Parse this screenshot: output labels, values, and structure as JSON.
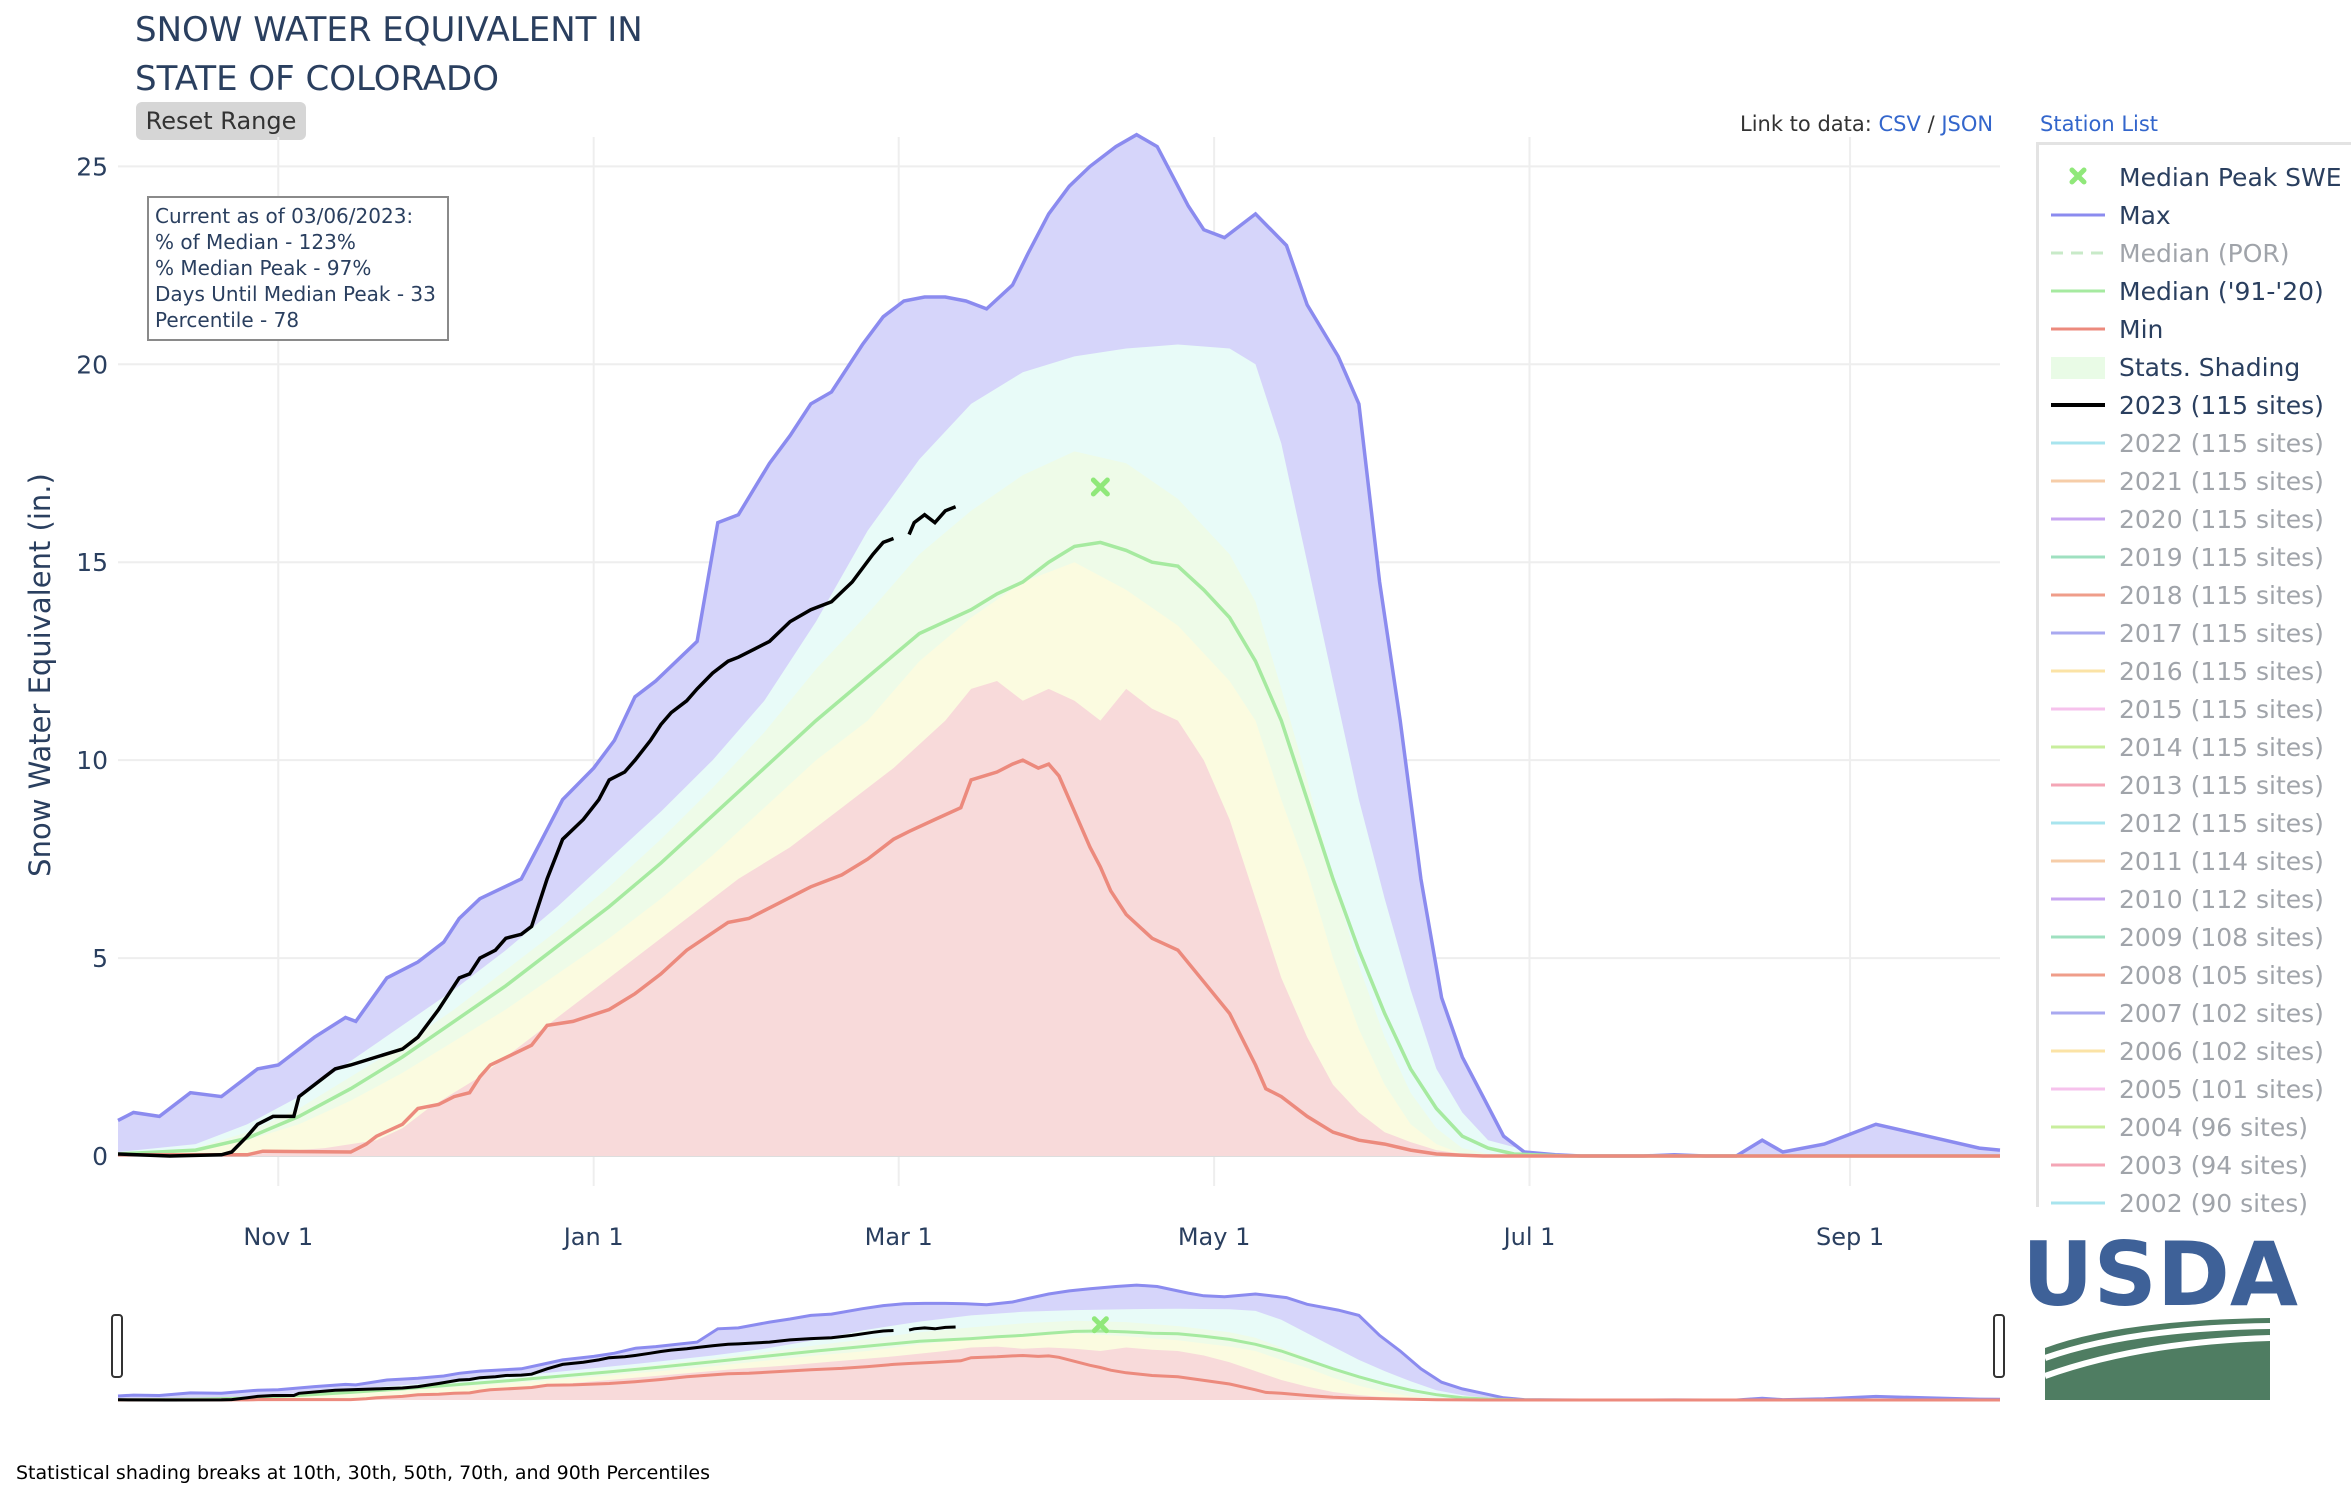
{
  "header": {
    "title_line1": "SNOW WATER EQUIVALENT IN",
    "title_line2": "STATE OF COLORADO",
    "reset_label": "Reset Range",
    "link_prefix": "Link to data:",
    "link_csv": "CSV",
    "link_sep": "/",
    "link_json": "JSON",
    "station_list": "Station List"
  },
  "info_box": {
    "line1": "Current as of 03/06/2023:",
    "line2": "% of Median - 123%",
    "line3": "% Median Peak - 97%",
    "line4": "Days Until Median Peak - 33",
    "line5": "Percentile - 78"
  },
  "footnote": "Statistical shading breaks at 10th, 30th, 50th, 70th, and 90th Percentiles",
  "logo": {
    "text": "USDA",
    "color_blue": "#3e6198",
    "color_green": "#4f7d62"
  },
  "colors": {
    "max": "#8b8bef",
    "max_fill": "#d6d5fa",
    "p90_fill": "#e8fbf8",
    "p70_fill": "#eefbe8",
    "p50_fill": "#fbfbe0",
    "min_fill": "#f8dada",
    "min": "#ec8a7d",
    "median": "#a6eaa0",
    "current": "#000000",
    "peak_marker": "#90e87a",
    "grid": "#eeeeee",
    "axis_text": "#2a3f5f"
  },
  "chart_data": {
    "type": "area",
    "title": "SNOW WATER EQUIVALENT IN STATE OF COLORADO",
    "ylabel": "Snow Water Equivalent (in.)",
    "xlabel": "",
    "x_range": [
      "10/01",
      "09/30"
    ],
    "ylim": [
      0,
      26.5
    ],
    "x_ticks": [
      "Nov 1",
      "Jan 1",
      "Mar 1",
      "May 1",
      "Jul 1",
      "Sep 1"
    ],
    "y_ticks": [
      0,
      5,
      10,
      15,
      20,
      25
    ],
    "grid": true,
    "legend_position": "right",
    "x_unit": "days since Oct 1",
    "series": [
      {
        "name": "Max",
        "x": [
          0,
          3,
          8,
          14,
          20,
          27,
          31,
          38,
          44,
          46,
          52,
          58,
          63,
          66,
          70,
          78,
          82,
          86,
          92,
          96,
          100,
          104,
          112,
          116,
          120,
          126,
          130,
          134,
          138,
          144,
          148,
          152,
          156,
          160,
          164,
          168,
          173,
          176,
          180,
          184,
          188,
          193,
          197,
          201,
          207,
          210,
          214,
          220,
          226,
          230,
          236,
          240,
          244,
          248,
          252,
          256,
          260,
          264,
          268,
          272,
          278,
          283,
          290,
          295,
          301,
          307,
          313,
          318,
          322,
          330,
          340,
          350,
          360,
          364
        ],
        "values": [
          0.9,
          1.1,
          1.0,
          1.6,
          1.5,
          2.2,
          2.3,
          3.0,
          3.5,
          3.4,
          4.5,
          4.9,
          5.4,
          6.0,
          6.5,
          7.0,
          8.0,
          9.0,
          9.8,
          10.5,
          11.6,
          12.0,
          13.0,
          16.0,
          16.2,
          17.5,
          18.2,
          19.0,
          19.3,
          20.5,
          21.2,
          21.6,
          21.7,
          21.7,
          21.6,
          21.4,
          22.0,
          22.8,
          23.8,
          24.5,
          25.0,
          25.5,
          25.8,
          25.5,
          24.0,
          23.4,
          23.2,
          23.8,
          23.0,
          21.5,
          20.2,
          19.0,
          14.5,
          11.0,
          7.0,
          4.0,
          2.5,
          1.5,
          0.5,
          0.1,
          0.03,
          0.0,
          0.0,
          0.0,
          0.03,
          0.0,
          0.0,
          0.4,
          0.1,
          0.3,
          0.8,
          0.5,
          0.2,
          0.15
        ]
      },
      {
        "name": "Stats. Shading",
        "x": [
          0,
          15,
          25,
          35,
          45,
          55,
          65,
          75,
          85,
          95,
          105,
          115,
          125,
          135,
          145,
          155,
          165,
          175,
          185,
          195,
          205,
          215,
          220,
          225,
          230,
          235,
          240,
          245,
          250,
          255,
          260,
          265,
          275,
          285,
          295,
          364
        ],
        "values": [
          0.1,
          0.3,
          0.8,
          1.5,
          2.4,
          3.3,
          4.2,
          5.2,
          6.3,
          7.5,
          8.7,
          10.0,
          11.5,
          13.5,
          15.8,
          17.6,
          19.0,
          19.8,
          20.2,
          20.4,
          20.5,
          20.4,
          20.0,
          18.0,
          15.0,
          12.0,
          9.0,
          6.5,
          4.2,
          2.2,
          1.1,
          0.4,
          0.05,
          0.0,
          0.0,
          0.0
        ]
      },
      {
        "name": "Stats. Shading",
        "x": [
          0,
          15,
          25,
          35,
          45,
          55,
          65,
          75,
          85,
          95,
          105,
          115,
          125,
          135,
          145,
          155,
          165,
          175,
          185,
          195,
          205,
          215,
          220,
          225,
          230,
          235,
          240,
          245,
          250,
          255,
          260,
          265,
          275,
          285,
          364
        ],
        "values": [
          0.08,
          0.2,
          0.6,
          1.2,
          2.0,
          2.8,
          3.7,
          4.7,
          5.7,
          6.8,
          8.0,
          9.3,
          10.7,
          12.3,
          13.7,
          15.2,
          16.3,
          17.2,
          17.8,
          17.5,
          16.6,
          15.2,
          14.0,
          11.8,
          9.5,
          7.0,
          4.8,
          3.0,
          1.6,
          0.7,
          0.2,
          0.05,
          0.0,
          0.0,
          0.0
        ]
      },
      {
        "name": "Stats. Shading",
        "x": [
          0,
          15,
          25,
          35,
          45,
          55,
          65,
          75,
          85,
          95,
          105,
          115,
          125,
          135,
          145,
          155,
          165,
          175,
          185,
          195,
          205,
          215,
          220,
          225,
          230,
          235,
          240,
          245,
          250,
          255,
          260,
          265,
          275,
          285,
          364
        ],
        "values": [
          0.05,
          0.12,
          0.4,
          0.8,
          1.4,
          2.1,
          2.9,
          3.7,
          4.6,
          5.5,
          6.5,
          7.6,
          8.8,
          10.0,
          11.0,
          12.5,
          13.6,
          14.5,
          15.0,
          14.3,
          13.4,
          12.0,
          11.0,
          9.0,
          7.2,
          5.0,
          3.2,
          1.8,
          0.8,
          0.3,
          0.05,
          0.0,
          0.0,
          0.0,
          0.0
        ]
      },
      {
        "name": "Stats. Shading",
        "x": [
          0,
          20,
          30,
          40,
          50,
          55,
          60,
          70,
          80,
          90,
          100,
          110,
          120,
          130,
          140,
          150,
          160,
          165,
          170,
          175,
          180,
          185,
          190,
          195,
          200,
          205,
          210,
          215,
          220,
          225,
          230,
          235,
          240,
          245,
          250,
          255,
          260,
          264,
          364
        ],
        "values": [
          0.03,
          0.05,
          0.1,
          0.2,
          0.4,
          0.7,
          1.2,
          2.0,
          3.0,
          4.0,
          5.0,
          6.0,
          7.0,
          7.8,
          8.8,
          9.8,
          11.0,
          11.8,
          12.0,
          11.5,
          11.8,
          11.5,
          11.0,
          11.8,
          11.3,
          11.0,
          10.0,
          8.5,
          6.5,
          4.5,
          3.0,
          1.8,
          1.1,
          0.6,
          0.35,
          0.15,
          0.05,
          0.0,
          0.0
        ]
      },
      {
        "name": "Median ('91-'20)",
        "x": [
          0,
          15,
          25,
          35,
          45,
          55,
          65,
          75,
          85,
          95,
          105,
          115,
          125,
          135,
          145,
          155,
          165,
          170,
          175,
          180,
          185,
          190,
          195,
          200,
          205,
          210,
          215,
          220,
          225,
          230,
          235,
          240,
          245,
          250,
          255,
          260,
          265,
          270,
          280,
          290,
          364
        ],
        "values": [
          0.05,
          0.15,
          0.45,
          1.0,
          1.7,
          2.5,
          3.4,
          4.3,
          5.3,
          6.3,
          7.4,
          8.6,
          9.8,
          11.0,
          12.1,
          13.2,
          13.8,
          14.2,
          14.5,
          15.0,
          15.4,
          15.5,
          15.3,
          15.0,
          14.9,
          14.3,
          13.6,
          12.5,
          11.0,
          9.0,
          7.0,
          5.2,
          3.6,
          2.2,
          1.2,
          0.5,
          0.2,
          0.05,
          0.0,
          0.0,
          0.0
        ]
      },
      {
        "name": "Min",
        "x": [
          0,
          25,
          28,
          45,
          48,
          50,
          55,
          58,
          62,
          65,
          68,
          70,
          72,
          80,
          83,
          88,
          95,
          100,
          105,
          110,
          118,
          122,
          128,
          134,
          140,
          145,
          150,
          153,
          158,
          163,
          165,
          170,
          173,
          175,
          178,
          180,
          182,
          185,
          188,
          190,
          192,
          195,
          200,
          205,
          210,
          215,
          220,
          222,
          225,
          230,
          235,
          240,
          245,
          250,
          255,
          260,
          264,
          280,
          364
        ],
        "values": [
          0.03,
          0.03,
          0.12,
          0.1,
          0.3,
          0.5,
          0.8,
          1.2,
          1.3,
          1.5,
          1.6,
          2.0,
          2.3,
          2.8,
          3.3,
          3.4,
          3.7,
          4.1,
          4.6,
          5.2,
          5.9,
          6.0,
          6.4,
          6.8,
          7.1,
          7.5,
          8.0,
          8.2,
          8.5,
          8.8,
          9.5,
          9.7,
          9.9,
          10.0,
          9.8,
          9.9,
          9.6,
          8.7,
          7.8,
          7.3,
          6.7,
          6.1,
          5.5,
          5.2,
          4.4,
          3.6,
          2.3,
          1.7,
          1.5,
          1.0,
          0.6,
          0.4,
          0.3,
          0.15,
          0.05,
          0.02,
          0.0,
          0.0,
          0.0
        ]
      },
      {
        "name": "2023 (115 sites)",
        "x": [
          0,
          10,
          20,
          22,
          25,
          27,
          30,
          34,
          35,
          40,
          42,
          45,
          50,
          55,
          58,
          62,
          66,
          68,
          70,
          73,
          75,
          78,
          80,
          83,
          86,
          90,
          93,
          95,
          98,
          100,
          103,
          105,
          107,
          110,
          112,
          115,
          118,
          120,
          123,
          126,
          130,
          134,
          138,
          142,
          146,
          148,
          150,
          152,
          153,
          154,
          156,
          158,
          160,
          162
        ],
        "values": [
          0.05,
          0.0,
          0.03,
          0.1,
          0.5,
          0.8,
          1.0,
          1.0,
          1.5,
          2.0,
          2.2,
          2.3,
          2.5,
          2.7,
          3.0,
          3.7,
          4.5,
          4.6,
          5.0,
          5.2,
          5.5,
          5.6,
          5.8,
          7.0,
          8.0,
          8.5,
          9.0,
          9.5,
          9.7,
          10.0,
          10.5,
          10.9,
          11.2,
          11.5,
          11.8,
          12.2,
          12.5,
          12.6,
          12.8,
          13.0,
          13.5,
          13.8,
          14.0,
          14.5,
          15.2,
          15.5,
          15.6,
          null,
          15.7,
          16.0,
          16.2,
          16.0,
          16.3,
          16.4
        ]
      }
    ],
    "median_peak": {
      "name": "Median Peak SWE",
      "x": 190,
      "y": 16.9
    },
    "legend_entries": [
      "Median Peak SWE",
      "Max",
      "Median (POR)",
      "Median ('91-'20)",
      "Min",
      "Stats. Shading",
      "2023 (115 sites)",
      "2022 (115 sites)",
      "2021 (115 sites)",
      "2020 (115 sites)",
      "2019 (115 sites)",
      "2018 (115 sites)",
      "2017 (115 sites)",
      "2016 (115 sites)",
      "2015 (115 sites)",
      "2014 (115 sites)",
      "2013 (115 sites)",
      "2012 (115 sites)",
      "2011 (114 sites)",
      "2010 (112 sites)",
      "2009 (108 sites)",
      "2008 (105 sites)",
      "2007 (102 sites)",
      "2006 (102 sites)",
      "2005 (101 sites)",
      "2004 (96 sites)",
      "2003 (94 sites)",
      "2002 (90 sites)"
    ],
    "legend_colors": [
      "#90e87a",
      "#8b8bef",
      "#c8eac8",
      "#a6eaa0",
      "#ec8a7d",
      "#e9fbe6",
      "#000000",
      "#a8e4ee",
      "#f6cda8",
      "#c8a6f2",
      "#9fe0c0",
      "#ef9d8a",
      "#a9a9f0",
      "#fbe3a6",
      "#f6c2ec",
      "#c8ee9d",
      "#f4a6b6",
      "#a8e4ee",
      "#f6cda8",
      "#c8a6f2",
      "#9fe0c0",
      "#ef9d8a",
      "#a9a9f0",
      "#fbe3a6",
      "#f6c2ec",
      "#c8ee9d",
      "#f4a6b6",
      "#a8e4ee"
    ]
  }
}
